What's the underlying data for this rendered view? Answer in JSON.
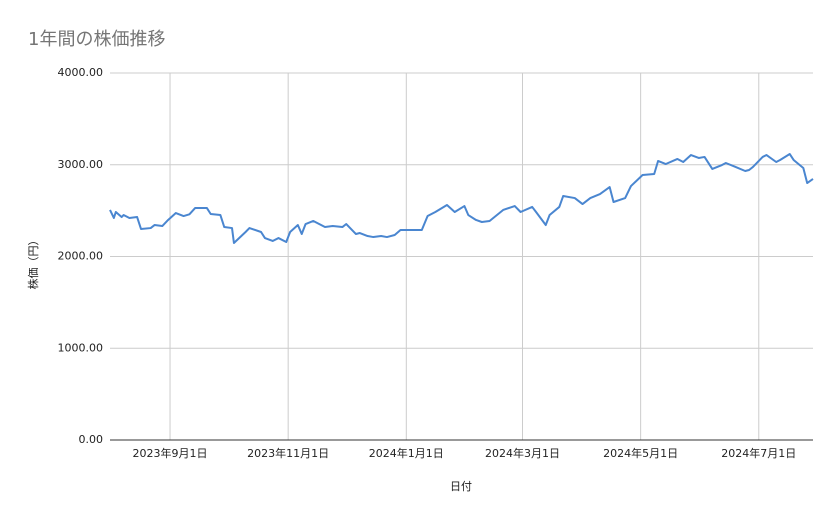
{
  "chart_data": {
    "type": "line",
    "title": "1年間の株価推移",
    "xlabel": "日付",
    "ylabel": "株価（円）",
    "x": [
      "2023-08-01",
      "2023-08-03",
      "2023-08-04",
      "2023-08-07",
      "2023-08-08",
      "2023-08-11",
      "2023-08-15",
      "2023-08-17",
      "2023-08-22",
      "2023-08-24",
      "2023-08-28",
      "2023-08-31",
      "2023-09-04",
      "2023-09-08",
      "2023-09-11",
      "2023-09-14",
      "2023-09-20",
      "2023-09-22",
      "2023-09-27",
      "2023-09-29",
      "2023-10-03",
      "2023-10-04",
      "2023-10-10",
      "2023-10-12",
      "2023-10-18",
      "2023-10-20",
      "2023-10-24",
      "2023-10-27",
      "2023-10-31",
      "2023-11-02",
      "2023-11-06",
      "2023-11-08",
      "2023-11-10",
      "2023-11-14",
      "2023-11-20",
      "2023-11-24",
      "2023-11-29",
      "2023-12-01",
      "2023-12-06",
      "2023-12-08",
      "2023-12-12",
      "2023-12-15",
      "2023-12-19",
      "2023-12-22",
      "2023-12-26",
      "2023-12-29",
      "2024-01-09",
      "2024-01-12",
      "2024-01-16",
      "2024-01-22",
      "2024-01-26",
      "2024-01-31",
      "2024-02-02",
      "2024-02-06",
      "2024-02-09",
      "2024-02-13",
      "2024-02-20",
      "2024-02-26",
      "2024-02-29",
      "2024-03-06",
      "2024-03-08",
      "2024-03-13",
      "2024-03-15",
      "2024-03-20",
      "2024-03-22",
      "2024-03-28",
      "2024-04-01",
      "2024-04-05",
      "2024-04-10",
      "2024-04-15",
      "2024-04-17",
      "2024-04-23",
      "2024-04-26",
      "2024-05-02",
      "2024-05-08",
      "2024-05-10",
      "2024-05-14",
      "2024-05-20",
      "2024-05-23",
      "2024-05-27",
      "2024-05-31",
      "2024-06-03",
      "2024-06-07",
      "2024-06-12",
      "2024-06-14",
      "2024-06-19",
      "2024-06-24",
      "2024-06-26",
      "2024-06-28",
      "2024-07-03",
      "2024-07-05",
      "2024-07-10",
      "2024-07-12",
      "2024-07-17",
      "2024-07-19",
      "2024-07-24",
      "2024-07-26",
      "2024-07-29"
    ],
    "series": [
      {
        "name": "株価",
        "color": "#4a86d0",
        "values": [
          2507,
          2420,
          2485,
          2430,
          2452,
          2420,
          2430,
          2300,
          2310,
          2343,
          2332,
          2398,
          2474,
          2441,
          2460,
          2529,
          2529,
          2463,
          2452,
          2321,
          2310,
          2147,
          2267,
          2310,
          2267,
          2201,
          2169,
          2201,
          2158,
          2267,
          2343,
          2245,
          2354,
          2387,
          2321,
          2332,
          2321,
          2354,
          2245,
          2256,
          2223,
          2212,
          2223,
          2212,
          2234,
          2289,
          2289,
          2441,
          2485,
          2561,
          2485,
          2550,
          2452,
          2398,
          2376,
          2387,
          2507,
          2550,
          2485,
          2540,
          2485,
          2343,
          2452,
          2540,
          2659,
          2637,
          2572,
          2637,
          2681,
          2757,
          2594,
          2637,
          2768,
          2888,
          2899,
          3041,
          3008,
          3063,
          3030,
          3106,
          3074,
          3085,
          2954,
          2997,
          3019,
          2976,
          2932,
          2943,
          2976,
          3085,
          3106,
          3030,
          3052,
          3117,
          3052,
          2965,
          2801,
          2845
        ]
      }
    ],
    "xlim": [
      "2023-08-01",
      "2024-07-29"
    ],
    "xticks": [
      {
        "value": "2023-09-01",
        "label": "2023年9月1日"
      },
      {
        "value": "2023-11-01",
        "label": "2023年11月1日"
      },
      {
        "value": "2024-01-01",
        "label": "2024年1月1日"
      },
      {
        "value": "2024-03-01",
        "label": "2024年3月1日"
      },
      {
        "value": "2024-05-01",
        "label": "2024年5月1日"
      },
      {
        "value": "2024-07-01",
        "label": "2024年7月1日"
      }
    ],
    "ylim": [
      0,
      4000
    ],
    "yticks": [
      {
        "value": 0,
        "label": "0.00"
      },
      {
        "value": 1000,
        "label": "1000.00"
      },
      {
        "value": 2000,
        "label": "2000.00"
      },
      {
        "value": 3000,
        "label": "3000.00"
      },
      {
        "value": 4000,
        "label": "4000.00"
      }
    ],
    "grid": true
  }
}
